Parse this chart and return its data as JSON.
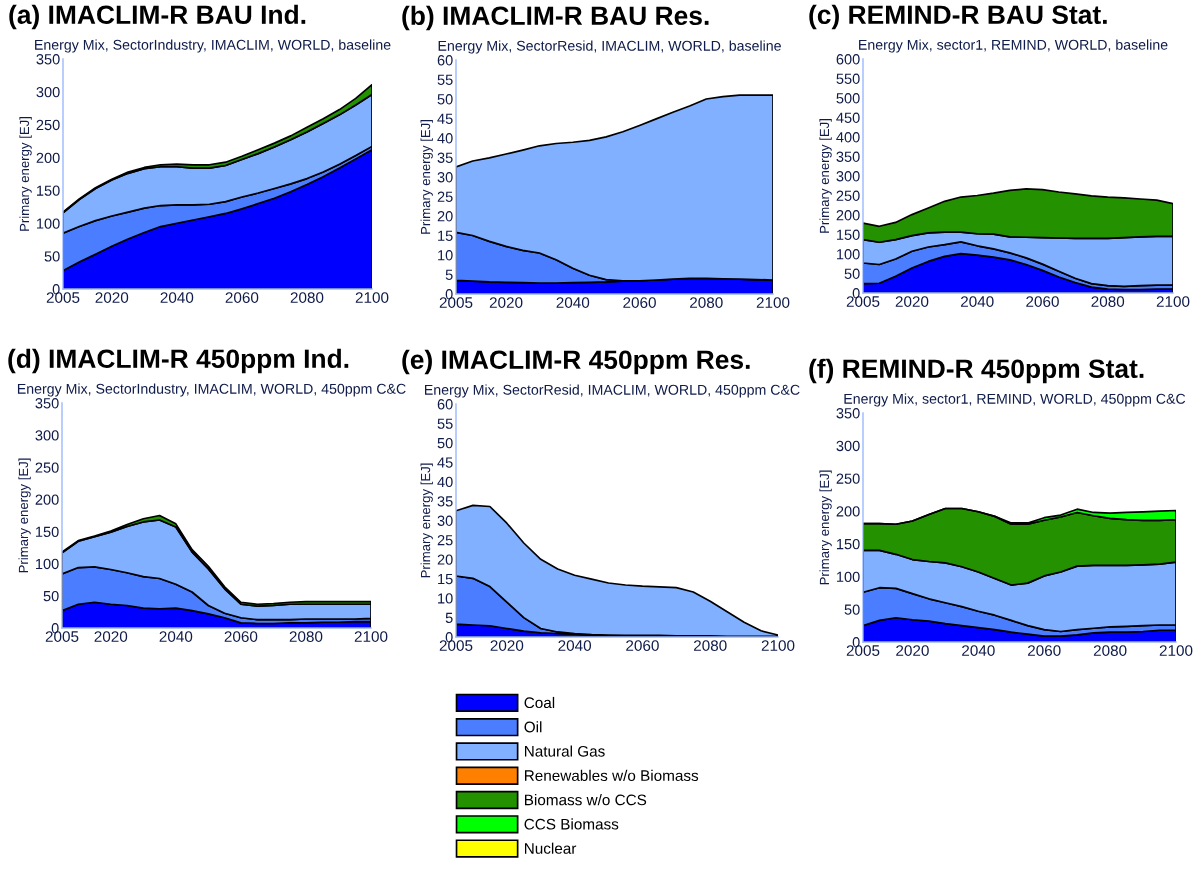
{
  "chart_data": [
    {
      "type": "area",
      "stacked": true,
      "legend": "bottom",
      "title": "(a) IMACLIM-R BAU Ind.",
      "subtitle": "Energy Mix, SectorIndustry, IMACLIM, WORLD, baseline",
      "ylabel": "Primary energy [EJ]",
      "x": [
        2005,
        2010,
        2015,
        2020,
        2025,
        2030,
        2035,
        2040,
        2045,
        2050,
        2055,
        2060,
        2065,
        2070,
        2075,
        2080,
        2085,
        2090,
        2095,
        2100
      ],
      "xlim": [
        2005,
        2100
      ],
      "xticks": [
        2005,
        2020,
        2040,
        2060,
        2080,
        2100
      ],
      "ylim": [
        0,
        350
      ],
      "yticks": [
        0,
        50,
        100,
        150,
        200,
        250,
        300,
        350
      ],
      "series": [
        {
          "name": "Coal",
          "color": "#0000ff",
          "values": [
            28,
            41,
            53,
            65,
            76,
            86,
            95,
            100,
            105,
            110,
            115,
            122,
            130,
            138,
            148,
            159,
            171,
            184,
            198,
            212
          ]
        },
        {
          "name": "Oil",
          "color": "#4a7dff",
          "values": [
            57,
            54,
            51,
            46,
            41,
            37,
            32,
            28,
            23,
            19,
            18,
            18,
            16,
            15,
            12,
            9,
            7,
            6,
            5,
            5
          ]
        },
        {
          "name": "Natural Gas",
          "color": "#80b0ff",
          "values": [
            31,
            41,
            49,
            55,
            59,
            60,
            59,
            58,
            56,
            55,
            55,
            57,
            60,
            63,
            67,
            71,
            74,
            75,
            77,
            79
          ]
        },
        {
          "name": "Renewables w/o Biomass",
          "color": "#ff8000",
          "values": [
            null,
            null,
            null,
            null,
            null,
            null,
            null,
            null,
            null,
            null,
            null,
            null,
            null,
            null,
            null,
            null,
            null,
            null,
            null,
            null
          ]
        },
        {
          "name": "Biomass w/o CCS",
          "color": "#239100",
          "values": [
            1,
            1,
            1,
            1,
            2,
            2,
            3,
            4,
            5,
            5,
            5,
            5,
            6,
            6,
            6,
            7,
            7,
            8,
            10,
            15
          ]
        },
        {
          "name": "CCS Biomass",
          "color": "#00ff00",
          "values": [
            null,
            null,
            null,
            null,
            null,
            null,
            null,
            null,
            null,
            null,
            null,
            null,
            null,
            null,
            null,
            null,
            null,
            null,
            null,
            null
          ]
        },
        {
          "name": "Nuclear",
          "color": "#ffff00",
          "values": [
            null,
            null,
            null,
            null,
            null,
            null,
            null,
            null,
            null,
            null,
            null,
            null,
            null,
            null,
            null,
            null,
            null,
            null,
            null,
            null
          ]
        }
      ]
    },
    {
      "type": "area",
      "stacked": true,
      "title": "(b) IMACLIM-R BAU Res.",
      "subtitle": "Energy Mix, SectorResid, IMACLIM, WORLD, baseline",
      "ylabel": "Primary energy [EJ]",
      "x": [
        2005,
        2010,
        2015,
        2020,
        2025,
        2030,
        2035,
        2040,
        2045,
        2050,
        2055,
        2060,
        2065,
        2070,
        2075,
        2080,
        2085,
        2090,
        2095,
        2100
      ],
      "xlim": [
        2005,
        2100
      ],
      "xticks": [
        2005,
        2020,
        2040,
        2060,
        2080,
        2100
      ],
      "ylim": [
        0,
        60
      ],
      "yticks": [
        0,
        5,
        10,
        15,
        20,
        25,
        30,
        35,
        40,
        45,
        50,
        55,
        60
      ],
      "series": [
        {
          "color": "#0000ff",
          "values": [
            3.5,
            3.3,
            3.1,
            3.0,
            2.9,
            2.8,
            2.8,
            2.9,
            3.0,
            3.1,
            3.3,
            3.4,
            3.6,
            3.8,
            4.0,
            4.0,
            3.9,
            3.8,
            3.7,
            3.6
          ]
        },
        {
          "color": "#4a7dff",
          "values": [
            12.3,
            11.7,
            10.4,
            9.2,
            8.3,
            7.7,
            6.0,
            3.7,
            1.8,
            0.6,
            0.1,
            0,
            0,
            0,
            0,
            0,
            0,
            0,
            0,
            0
          ]
        },
        {
          "color": "#80b0ff",
          "values": [
            16.8,
            19.1,
            21.4,
            23.7,
            25.7,
            27.5,
            29.8,
            32.3,
            34.6,
            36.6,
            38.2,
            39.8,
            41.3,
            42.8,
            44.2,
            46.0,
            46.7,
            47.2,
            47.3,
            47.4
          ]
        }
      ]
    },
    {
      "type": "area",
      "stacked": true,
      "title": "(c) REMIND-R BAU Stat.",
      "subtitle": "Energy Mix, sector1, REMIND, WORLD, baseline",
      "ylabel": "Primary energy [EJ]",
      "x": [
        2005,
        2010,
        2015,
        2020,
        2025,
        2030,
        2035,
        2040,
        2045,
        2050,
        2055,
        2060,
        2065,
        2070,
        2075,
        2080,
        2085,
        2090,
        2095,
        2100
      ],
      "xlim": [
        2005,
        2100
      ],
      "xticks": [
        2005,
        2020,
        2040,
        2060,
        2080,
        2100
      ],
      "ylim": [
        0,
        600
      ],
      "yticks": [
        0,
        50,
        100,
        150,
        200,
        250,
        300,
        350,
        400,
        450,
        500,
        550,
        600
      ],
      "series": [
        {
          "color": "#0000ff",
          "values": [
            24,
            25,
            43,
            64,
            81,
            94,
            101,
            97,
            92,
            85,
            73,
            58,
            41,
            27,
            15,
            10,
            9,
            9,
            10,
            11
          ]
        },
        {
          "color": "#4a7dff",
          "values": [
            53,
            48,
            44,
            43,
            37,
            30,
            30,
            24,
            21,
            18,
            17,
            16,
            15,
            11,
            9,
            9,
            8,
            10,
            10,
            10
          ]
        },
        {
          "color": "#80b0ff",
          "values": [
            60,
            57,
            50,
            40,
            36,
            32,
            25,
            31,
            38,
            41,
            53,
            68,
            85,
            102,
            116,
            121,
            125,
            125,
            125,
            124
          ]
        },
        {
          "color": "#239100",
          "values": [
            42,
            41,
            44,
            54,
            64,
            79,
            90,
            98,
            105,
            119,
            124,
            123,
            118,
            114,
            109,
            106,
            102,
            97,
            93,
            84
          ]
        }
      ]
    },
    {
      "type": "area",
      "stacked": true,
      "title": "(d) IMACLIM-R 450ppm Ind.",
      "subtitle": "Energy Mix, SectorIndustry, IMACLIM, WORLD, 450ppm C&C",
      "ylabel": "Primary energy [EJ]",
      "x": [
        2005,
        2010,
        2015,
        2020,
        2025,
        2030,
        2035,
        2040,
        2045,
        2050,
        2055,
        2060,
        2065,
        2070,
        2075,
        2080,
        2085,
        2090,
        2095,
        2100
      ],
      "xlim": [
        2005,
        2100
      ],
      "xticks": [
        2005,
        2020,
        2040,
        2060,
        2080,
        2100
      ],
      "ylim": [
        0,
        350
      ],
      "yticks": [
        0,
        50,
        100,
        150,
        200,
        250,
        300,
        350
      ],
      "series": [
        {
          "color": "#0000ff",
          "values": [
            27,
            37,
            40,
            37,
            35,
            31,
            30,
            31,
            27,
            22,
            16,
            8,
            7,
            7,
            8,
            8,
            9,
            9,
            10,
            10
          ]
        },
        {
          "color": "#4a7dff",
          "values": [
            57,
            57,
            55,
            54,
            51,
            49,
            47,
            37,
            29,
            13,
            7,
            8,
            6,
            6,
            5,
            6,
            5,
            5,
            4,
            5
          ]
        },
        {
          "color": "#80b0ff",
          "values": [
            33,
            41,
            47,
            58,
            72,
            85,
            91,
            89,
            62,
            57,
            38,
            21,
            21,
            22,
            24,
            23,
            23,
            23,
            23,
            22
          ]
        },
        {
          "color": "#239100",
          "values": [
            1,
            1,
            1,
            2,
            3,
            5,
            7,
            5,
            4,
            4,
            3,
            3,
            3,
            3,
            3,
            4,
            4,
            4,
            4,
            4
          ]
        }
      ]
    },
    {
      "type": "area",
      "stacked": true,
      "title": "(e) IMACLIM-R 450ppm Res.",
      "subtitle": "Energy Mix, SectorResid, IMACLIM, WORLD, 450ppm C&C",
      "ylabel": "Primary energy [EJ]",
      "x": [
        2005,
        2010,
        2015,
        2020,
        2025,
        2030,
        2035,
        2040,
        2045,
        2050,
        2055,
        2060,
        2065,
        2070,
        2075,
        2080,
        2085,
        2090,
        2095,
        2100
      ],
      "xlim": [
        2005,
        2100
      ],
      "xticks": [
        2005,
        2020,
        2040,
        2060,
        2080,
        2100
      ],
      "ylim": [
        0,
        60
      ],
      "yticks": [
        0,
        5,
        10,
        15,
        20,
        25,
        30,
        35,
        40,
        45,
        50,
        55,
        60
      ],
      "series": [
        {
          "color": "#0000ff",
          "values": [
            3.3,
            3.1,
            2.9,
            2.2,
            1.5,
            1.1,
            0.9,
            0.7,
            0.5,
            0.4,
            0.3,
            0.3,
            0.3,
            0.2,
            0.2,
            0.2,
            0.1,
            0.1,
            0.1,
            0.1
          ]
        },
        {
          "color": "#4a7dff",
          "values": [
            12.4,
            12.0,
            10.1,
            6.8,
            3.5,
            1.1,
            0.4,
            0.2,
            0.1,
            0.1,
            0.1,
            0.1,
            0.1,
            0.1,
            0.1,
            0.1,
            0.1,
            0.1,
            0.1,
            0.1
          ]
        },
        {
          "color": "#80b0ff",
          "values": [
            16.8,
            18.8,
            20.6,
            20.3,
            19.2,
            17.8,
            16.2,
            15.0,
            14.3,
            13.4,
            13.0,
            12.7,
            12.5,
            12.4,
            11.3,
            8.9,
            6.3,
            3.6,
            1.4,
            0.3
          ]
        }
      ]
    },
    {
      "type": "area",
      "stacked": true,
      "title": "(f) REMIND-R 450ppm Stat.",
      "subtitle": "Energy Mix, sector1, REMIND, WORLD, 450ppm C&C",
      "ylabel": "Primary energy [EJ]",
      "x": [
        2005,
        2010,
        2015,
        2020,
        2025,
        2030,
        2035,
        2040,
        2045,
        2050,
        2055,
        2060,
        2065,
        2070,
        2075,
        2080,
        2085,
        2090,
        2095,
        2100
      ],
      "xlim": [
        2005,
        2100
      ],
      "xticks": [
        2005,
        2020,
        2040,
        2060,
        2080,
        2100
      ],
      "ylim": [
        0,
        350
      ],
      "yticks": [
        0,
        50,
        100,
        150,
        200,
        250,
        300,
        350
      ],
      "series": [
        {
          "color": "#0000ff",
          "values": [
            25,
            33,
            37,
            34,
            32,
            28,
            25,
            22,
            19,
            15,
            12,
            9,
            9,
            11,
            14,
            15,
            15,
            16,
            18,
            18
          ]
        },
        {
          "color": "#4a7dff",
          "values": [
            51,
            50,
            45,
            40,
            34,
            32,
            29,
            25,
            22,
            18,
            13,
            10,
            7,
            8,
            7,
            8,
            9,
            9,
            8,
            8
          ]
        },
        {
          "color": "#80b0ff",
          "values": [
            64,
            57,
            52,
            52,
            57,
            61,
            61,
            60,
            56,
            54,
            65,
            82,
            91,
            97,
            96,
            94,
            93,
            93,
            93,
            96
          ]
        },
        {
          "color": "#239100",
          "values": [
            41,
            41,
            46,
            59,
            72,
            83,
            89,
            92,
            95,
            93,
            90,
            85,
            84,
            82,
            76,
            72,
            70,
            68,
            67,
            65
          ]
        },
        {
          "color": "#00ff00",
          "values": [
            0,
            0,
            0,
            0,
            0,
            0,
            0,
            0,
            0,
            2,
            2,
            4,
            3,
            5,
            5,
            8,
            11,
            13,
            14,
            14
          ]
        }
      ]
    }
  ]
}
